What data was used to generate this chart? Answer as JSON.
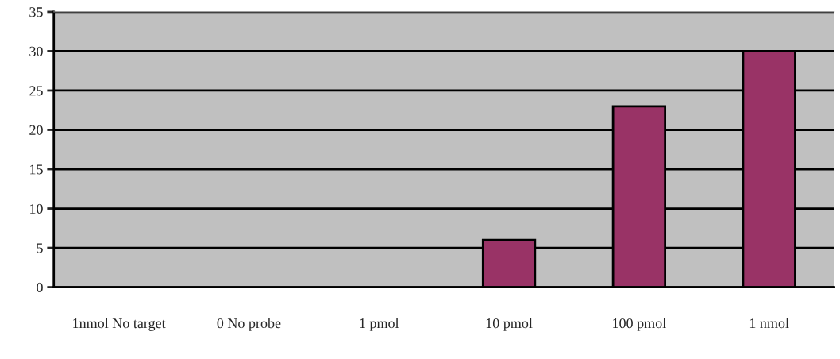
{
  "chart_data": {
    "type": "bar",
    "categories": [
      "1nmol No target",
      "0 No probe",
      "1 pmol",
      "10 pmol",
      "100 pmol",
      "1 nmol"
    ],
    "values": [
      0,
      0,
      0,
      6,
      23,
      30
    ],
    "color": "#993366",
    "ylim": [
      0,
      35
    ],
    "yticks": [
      0,
      5,
      10,
      15,
      20,
      25,
      30,
      35
    ],
    "grid": "y"
  }
}
